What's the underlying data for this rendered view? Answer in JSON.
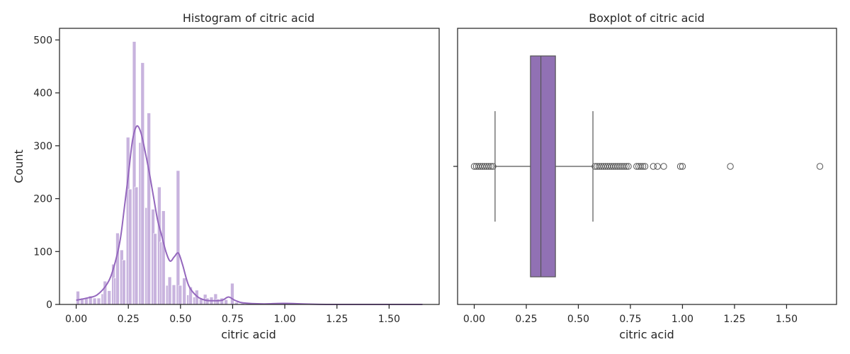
{
  "colors": {
    "hist_fill": "#c8b3de",
    "hist_edge": "#ffffff",
    "kde": "#9467bd",
    "box_fill": "#9171b4",
    "whisker": "#555555",
    "flier_edge": "#555555",
    "axes": "#262626"
  },
  "chart_data": [
    {
      "type": "histogram",
      "title": "Histogram of citric acid",
      "xlabel": "citric acid",
      "ylabel": "Count",
      "xlim": [
        -0.08,
        1.74
      ],
      "ylim": [
        0,
        522
      ],
      "xticks": [
        0.0,
        0.25,
        0.5,
        0.75,
        1.0,
        1.25,
        1.5
      ],
      "xtick_labels": [
        "0.00",
        "0.25",
        "0.50",
        "0.75",
        "1.00",
        "1.25",
        "1.50"
      ],
      "yticks": [
        0,
        100,
        200,
        300,
        400,
        500
      ],
      "ytick_labels": [
        "0",
        "100",
        "200",
        "300",
        "400",
        "500"
      ],
      "bin_width": 0.0166,
      "bins": [
        [
          0.0,
          25
        ],
        [
          0.02,
          12
        ],
        [
          0.04,
          12
        ],
        [
          0.06,
          16
        ],
        [
          0.08,
          12
        ],
        [
          0.1,
          12
        ],
        [
          0.12,
          20
        ],
        [
          0.13,
          44
        ],
        [
          0.15,
          26
        ],
        [
          0.17,
          76
        ],
        [
          0.18,
          50
        ],
        [
          0.19,
          135
        ],
        [
          0.21,
          103
        ],
        [
          0.22,
          84
        ],
        [
          0.24,
          316
        ],
        [
          0.25,
          218
        ],
        [
          0.27,
          497
        ],
        [
          0.28,
          222
        ],
        [
          0.3,
          306
        ],
        [
          0.31,
          457
        ],
        [
          0.33,
          183
        ],
        [
          0.34,
          362
        ],
        [
          0.36,
          180
        ],
        [
          0.37,
          134
        ],
        [
          0.39,
          222
        ],
        [
          0.4,
          118
        ],
        [
          0.41,
          177
        ],
        [
          0.43,
          36
        ],
        [
          0.44,
          52
        ],
        [
          0.46,
          37
        ],
        [
          0.48,
          253
        ],
        [
          0.49,
          36
        ],
        [
          0.51,
          50
        ],
        [
          0.53,
          18
        ],
        [
          0.54,
          33
        ],
        [
          0.56,
          14
        ],
        [
          0.57,
          27
        ],
        [
          0.59,
          10
        ],
        [
          0.61,
          19
        ],
        [
          0.62,
          12
        ],
        [
          0.64,
          14
        ],
        [
          0.66,
          20
        ],
        [
          0.67,
          10
        ],
        [
          0.69,
          12
        ],
        [
          0.71,
          9
        ],
        [
          0.74,
          40
        ],
        [
          0.76,
          4
        ],
        [
          0.79,
          2
        ],
        [
          0.99,
          3
        ]
      ],
      "kde": {
        "x": [
          0.0,
          0.05,
          0.1,
          0.15,
          0.18,
          0.21,
          0.23,
          0.25,
          0.27,
          0.29,
          0.31,
          0.33,
          0.35,
          0.37,
          0.39,
          0.41,
          0.43,
          0.45,
          0.47,
          0.49,
          0.51,
          0.54,
          0.58,
          0.62,
          0.66,
          0.7,
          0.73,
          0.76,
          0.8,
          0.9,
          1.0,
          1.2,
          1.66
        ],
        "y": [
          8,
          12,
          18,
          40,
          70,
          120,
          180,
          245,
          310,
          337,
          325,
          290,
          250,
          205,
          160,
          130,
          100,
          82,
          90,
          97,
          75,
          35,
          15,
          8,
          7,
          8,
          14,
          8,
          3,
          1,
          2,
          0,
          0
        ]
      }
    },
    {
      "type": "boxplot",
      "title": "Boxplot of citric acid",
      "xlabel": "citric acid",
      "xlim": [
        -0.08,
        1.74
      ],
      "xticks": [
        0.0,
        0.25,
        0.5,
        0.75,
        1.0,
        1.25,
        1.5
      ],
      "xtick_labels": [
        "0.00",
        "0.25",
        "0.50",
        "0.75",
        "1.00",
        "1.25",
        "1.50"
      ],
      "q1": 0.27,
      "median": 0.32,
      "q3": 0.39,
      "whisker_low": 0.1,
      "whisker_high": 0.57,
      "outliers": [
        0.0,
        0.01,
        0.02,
        0.03,
        0.04,
        0.05,
        0.06,
        0.07,
        0.08,
        0.09,
        0.58,
        0.59,
        0.6,
        0.61,
        0.62,
        0.63,
        0.64,
        0.65,
        0.66,
        0.67,
        0.68,
        0.69,
        0.7,
        0.71,
        0.72,
        0.73,
        0.74,
        0.78,
        0.79,
        0.8,
        0.81,
        0.82,
        0.86,
        0.88,
        0.91,
        0.99,
        1.0,
        1.23,
        1.66
      ]
    }
  ]
}
